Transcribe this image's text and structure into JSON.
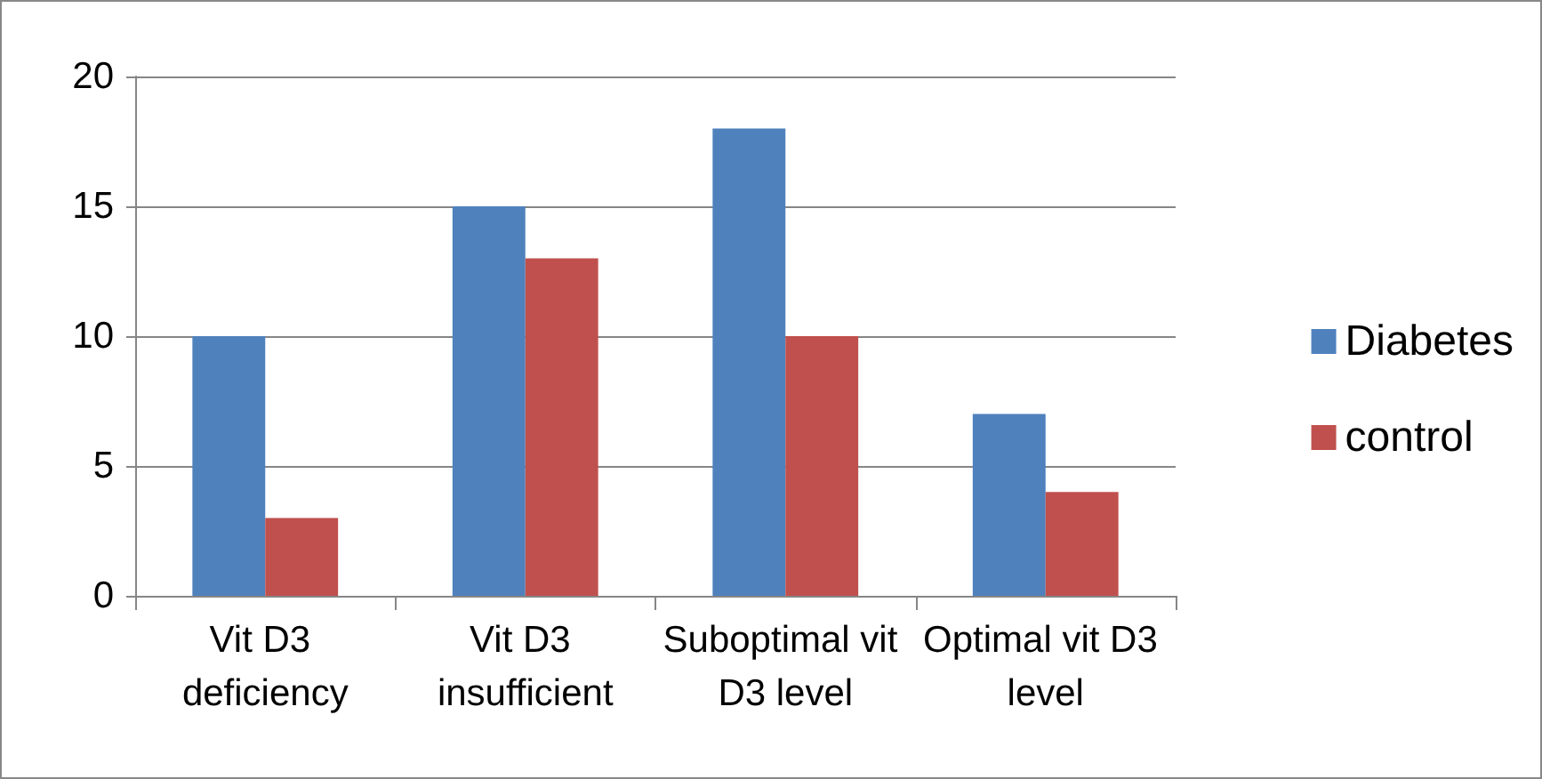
{
  "chart_data": {
    "type": "bar",
    "categories": [
      "Vit D3 deficiency",
      "Vit D3 insufficient",
      "Suboptimal vit D3 level",
      "Optimal vit D3 level"
    ],
    "series": [
      {
        "name": "Diabetes",
        "color": "#4f81bd",
        "values": [
          10,
          15,
          18,
          7
        ]
      },
      {
        "name": "control",
        "color": "#c0504d",
        "values": [
          3,
          13,
          10,
          4
        ]
      }
    ],
    "ylim": [
      0,
      20
    ],
    "yticks": [
      0,
      5,
      10,
      15,
      20
    ],
    "grid": "y",
    "legend": "right"
  }
}
